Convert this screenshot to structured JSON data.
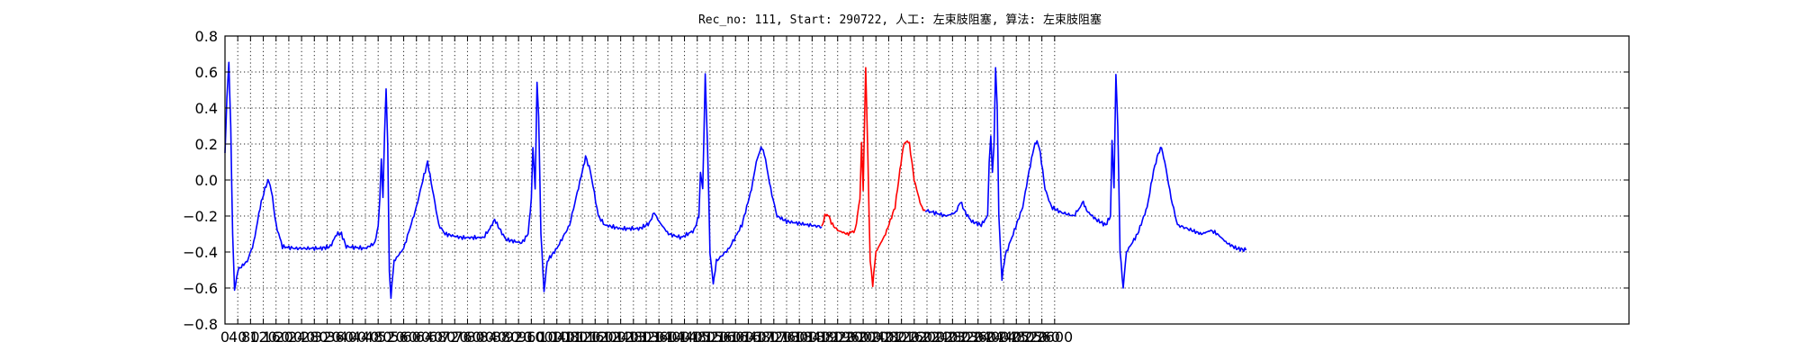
{
  "chart_data": {
    "type": "line",
    "title": "Rec_no: 111, Start: 290722, 人工: 左束肢阻塞, 算法: 左束肢阻塞",
    "xlabel": "",
    "ylabel": "",
    "xlim": [
      0,
      3200
    ],
    "ylim": [
      -0.8,
      0.8
    ],
    "grid": true,
    "yticks": [
      "0.8",
      "0.6",
      "0.4",
      "0.2",
      "0.0",
      "−0.2",
      "−0.4",
      "−0.6",
      "−0.8"
    ],
    "ytick_values": [
      0.8,
      0.6,
      0.4,
      0.2,
      0.0,
      -0.2,
      -0.4,
      -0.6,
      -0.8
    ],
    "xticks": [
      "0",
      "40",
      "80",
      "120",
      "160",
      "200",
      "240",
      "280",
      "320",
      "360",
      "400",
      "440",
      "480",
      "520",
      "560",
      "600",
      "640",
      "680",
      "720",
      "760",
      "800",
      "840",
      "880",
      "920",
      "960",
      "1000",
      "1040",
      "1080",
      "1120",
      "1160",
      "1200",
      "1240",
      "1280",
      "1320",
      "1360",
      "1400",
      "1440",
      "1480",
      "1520",
      "1560",
      "1600",
      "1640",
      "1680",
      "1720",
      "1760",
      "1800",
      "1840",
      "1880",
      "1920",
      "1960",
      "2000",
      "2040",
      "2080",
      "2120",
      "2160",
      "2200",
      "2240",
      "2280",
      "2320",
      "2360",
      "2400",
      "2440",
      "2480",
      "2520",
      "2560",
      "2600"
    ],
    "series": [
      {
        "color": "#0000ff",
        "points": [
          [
            0,
            0.15
          ],
          [
            6,
            0.45
          ],
          [
            12,
            0.65
          ],
          [
            18,
            0.3
          ],
          [
            24,
            -0.3
          ],
          [
            30,
            -0.62
          ],
          [
            40,
            -0.5
          ],
          [
            70,
            -0.45
          ],
          [
            90,
            -0.35
          ],
          [
            110,
            -0.15
          ],
          [
            125,
            -0.05
          ],
          [
            135,
            0.0
          ],
          [
            145,
            -0.05
          ],
          [
            160,
            -0.25
          ],
          [
            180,
            -0.37
          ],
          [
            220,
            -0.38
          ],
          [
            300,
            -0.38
          ],
          [
            330,
            -0.37
          ],
          [
            350,
            -0.3
          ],
          [
            365,
            -0.3
          ],
          [
            380,
            -0.37
          ],
          [
            440,
            -0.38
          ],
          [
            470,
            -0.35
          ],
          [
            480,
            -0.25
          ],
          [
            485,
            -0.1
          ],
          [
            490,
            0.12
          ],
          [
            495,
            -0.1
          ],
          [
            500,
            0.25
          ],
          [
            505,
            0.5
          ],
          [
            510,
            0.2
          ],
          [
            515,
            -0.5
          ],
          [
            520,
            -0.65
          ],
          [
            530,
            -0.45
          ],
          [
            560,
            -0.38
          ],
          [
            600,
            -0.15
          ],
          [
            620,
            0.0
          ],
          [
            635,
            0.1
          ],
          [
            650,
            -0.05
          ],
          [
            670,
            -0.25
          ],
          [
            690,
            -0.3
          ],
          [
            740,
            -0.32
          ],
          [
            810,
            -0.32
          ],
          [
            830,
            -0.27
          ],
          [
            845,
            -0.22
          ],
          [
            860,
            -0.27
          ],
          [
            880,
            -0.33
          ],
          [
            930,
            -0.35
          ],
          [
            950,
            -0.3
          ],
          [
            960,
            -0.1
          ],
          [
            965,
            0.18
          ],
          [
            972,
            -0.05
          ],
          [
            978,
            0.55
          ],
          [
            983,
            0.35
          ],
          [
            990,
            -0.3
          ],
          [
            1000,
            -0.62
          ],
          [
            1010,
            -0.45
          ],
          [
            1040,
            -0.38
          ],
          [
            1080,
            -0.25
          ],
          [
            1100,
            -0.1
          ],
          [
            1120,
            0.05
          ],
          [
            1130,
            0.13
          ],
          [
            1145,
            0.05
          ],
          [
            1170,
            -0.2
          ],
          [
            1190,
            -0.25
          ],
          [
            1240,
            -0.27
          ],
          [
            1300,
            -0.27
          ],
          [
            1330,
            -0.24
          ],
          [
            1345,
            -0.18
          ],
          [
            1360,
            -0.23
          ],
          [
            1390,
            -0.3
          ],
          [
            1430,
            -0.32
          ],
          [
            1470,
            -0.28
          ],
          [
            1485,
            -0.2
          ],
          [
            1490,
            0.05
          ],
          [
            1497,
            -0.05
          ],
          [
            1505,
            0.58
          ],
          [
            1512,
            0.2
          ],
          [
            1520,
            -0.4
          ],
          [
            1530,
            -0.58
          ],
          [
            1540,
            -0.45
          ],
          [
            1580,
            -0.38
          ],
          [
            1620,
            -0.25
          ],
          [
            1650,
            -0.05
          ],
          [
            1665,
            0.1
          ],
          [
            1680,
            0.18
          ],
          [
            1690,
            0.15
          ],
          [
            1710,
            -0.05
          ],
          [
            1730,
            -0.2
          ],
          [
            1760,
            -0.23
          ],
          [
            1830,
            -0.25
          ],
          [
            1870,
            -0.26
          ]
        ]
      },
      {
        "color": "#ff0000",
        "points": [
          [
            1870,
            -0.26
          ],
          [
            1880,
            -0.2
          ],
          [
            1890,
            -0.19
          ],
          [
            1900,
            -0.24
          ],
          [
            1920,
            -0.28
          ],
          [
            1950,
            -0.3
          ],
          [
            1975,
            -0.28
          ],
          [
            1990,
            -0.1
          ],
          [
            1995,
            0.22
          ],
          [
            2000,
            -0.05
          ],
          [
            2008,
            0.63
          ],
          [
            2015,
            0.1
          ],
          [
            2022,
            -0.45
          ],
          [
            2030,
            -0.58
          ],
          [
            2040,
            -0.4
          ],
          [
            2070,
            -0.3
          ],
          [
            2100,
            -0.15
          ],
          [
            2115,
            0.05
          ],
          [
            2125,
            0.18
          ],
          [
            2135,
            0.22
          ],
          [
            2145,
            0.2
          ],
          [
            2160,
            0.0
          ],
          [
            2175,
            -0.1
          ],
          [
            2185,
            -0.16
          ],
          [
            2195,
            -0.17
          ]
        ]
      },
      {
        "color": "#0000ff",
        "points": [
          [
            2195,
            -0.17
          ],
          [
            2220,
            -0.18
          ],
          [
            2260,
            -0.2
          ],
          [
            2290,
            -0.18
          ],
          [
            2305,
            -0.12
          ],
          [
            2320,
            -0.18
          ],
          [
            2340,
            -0.23
          ],
          [
            2370,
            -0.25
          ],
          [
            2390,
            -0.2
          ],
          [
            2395,
            0.1
          ],
          [
            2400,
            0.25
          ],
          [
            2405,
            0.05
          ],
          [
            2410,
            0.2
          ],
          [
            2415,
            0.62
          ],
          [
            2420,
            0.4
          ],
          [
            2425,
            -0.2
          ],
          [
            2435,
            -0.55
          ],
          [
            2445,
            -0.42
          ],
          [
            2470,
            -0.3
          ],
          [
            2500,
            -0.15
          ],
          [
            2520,
            0.05
          ],
          [
            2535,
            0.18
          ],
          [
            2545,
            0.22
          ],
          [
            2555,
            0.15
          ],
          [
            2570,
            -0.05
          ],
          [
            2590,
            -0.15
          ],
          [
            2620,
            -0.18
          ],
          [
            2660,
            -0.2
          ],
          [
            2680,
            -0.15
          ],
          [
            2690,
            -0.12
          ],
          [
            2700,
            -0.17
          ],
          [
            2730,
            -0.22
          ],
          [
            2760,
            -0.25
          ],
          [
            2775,
            -0.2
          ],
          [
            2780,
            0.22
          ],
          [
            2786,
            -0.05
          ],
          [
            2792,
            0.58
          ],
          [
            2798,
            0.3
          ],
          [
            2805,
            -0.4
          ],
          [
            2815,
            -0.6
          ],
          [
            2825,
            -0.4
          ],
          [
            2860,
            -0.3
          ],
          [
            2890,
            -0.15
          ],
          [
            2910,
            0.05
          ],
          [
            2925,
            0.15
          ],
          [
            2935,
            0.18
          ],
          [
            2945,
            0.1
          ],
          [
            2965,
            -0.1
          ],
          [
            2985,
            -0.25
          ],
          [
            3030,
            -0.28
          ],
          [
            3060,
            -0.3
          ],
          [
            3090,
            -0.28
          ],
          [
            3110,
            -0.3
          ],
          [
            3140,
            -0.35
          ],
          [
            3170,
            -0.38
          ],
          [
            3200,
            -0.39
          ]
        ]
      }
    ]
  }
}
